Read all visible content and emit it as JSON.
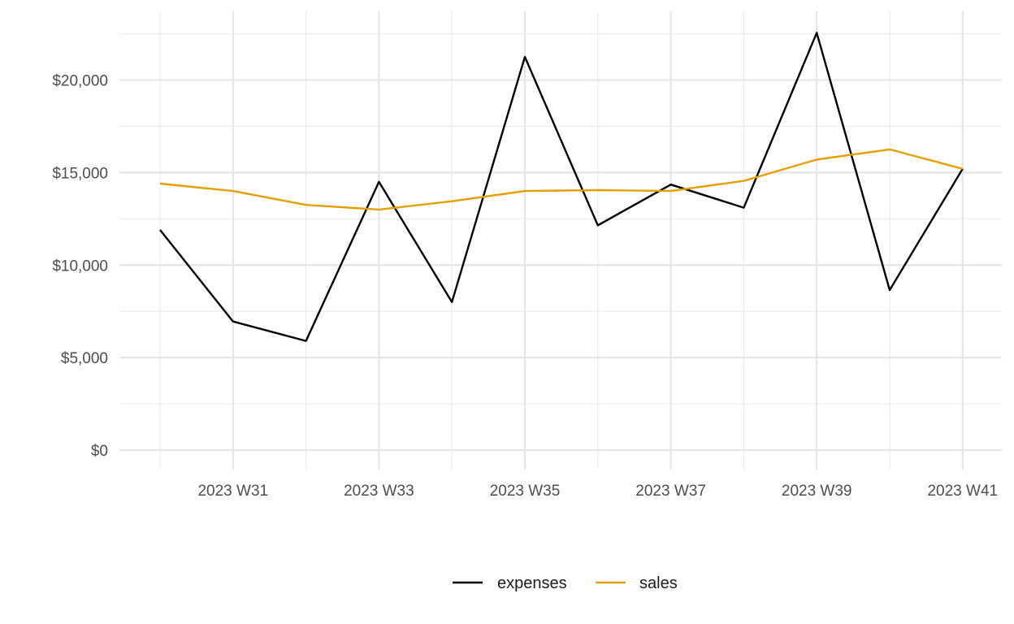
{
  "chart_data": {
    "type": "line",
    "title": "",
    "xlabel": "",
    "ylabel": "",
    "x": [
      "2023 W30",
      "2023 W31",
      "2023 W32",
      "2023 W33",
      "2023 W34",
      "2023 W35",
      "2023 W36",
      "2023 W37",
      "2023 W38",
      "2023 W39",
      "2023 W40",
      "2023 W41"
    ],
    "x_tick_labels": [
      "2023 W31",
      "2023 W33",
      "2023 W35",
      "2023 W37",
      "2023 W39",
      "2023 W41"
    ],
    "y_tick_labels": [
      "$0",
      "$5,000",
      "$10,000",
      "$15,000",
      "$20,000"
    ],
    "y_ticks": [
      0,
      5000,
      10000,
      15000,
      20000
    ],
    "ylim": [
      -1000,
      23600
    ],
    "grid": true,
    "legend_position": "bottom",
    "series": [
      {
        "name": "expenses",
        "color": "#000000",
        "values": [
          11900,
          6950,
          5900,
          14500,
          8000,
          21250,
          12150,
          14350,
          13100,
          22550,
          8650,
          15200
        ]
      },
      {
        "name": "sales",
        "color": "#E69F00",
        "values": [
          14400,
          14000,
          13250,
          13000,
          13450,
          14000,
          14050,
          14000,
          14550,
          15700,
          16250,
          15200
        ]
      }
    ]
  }
}
